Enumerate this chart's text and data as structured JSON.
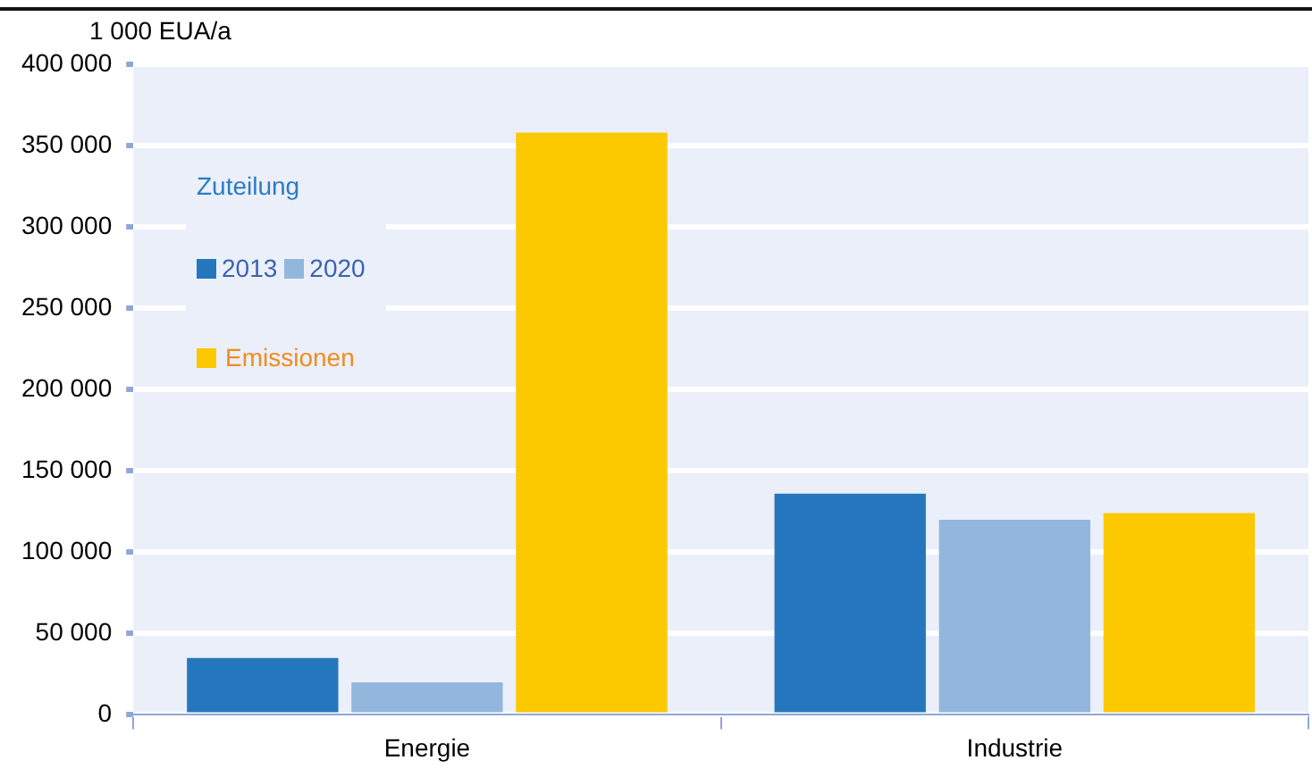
{
  "chart_data": {
    "type": "bar",
    "ylabel": "1 000 EUA/a",
    "legend_title": "Zuteilung",
    "categories": [
      "Energie",
      "Industrie"
    ],
    "series": [
      {
        "name": "2013",
        "color": "#2577bd",
        "values": [
          35000,
          136000
        ]
      },
      {
        "name": "2020",
        "color": "#93b7dc",
        "values": [
          20000,
          120000
        ]
      },
      {
        "name": "Emissionen",
        "color": "#fcc800",
        "values": [
          358000,
          124000
        ]
      }
    ],
    "ylim": [
      0,
      400000
    ],
    "yticks": [
      {
        "value": 0,
        "label": "0"
      },
      {
        "value": 50000,
        "label": "50 000"
      },
      {
        "value": 100000,
        "label": "100 000"
      },
      {
        "value": 150000,
        "label": "150 000"
      },
      {
        "value": 200000,
        "label": "200 000"
      },
      {
        "value": 250000,
        "label": "250 000"
      },
      {
        "value": 300000,
        "label": "300 000"
      },
      {
        "value": 350000,
        "label": "350 000"
      },
      {
        "value": 400000,
        "label": "400 000"
      }
    ],
    "grid": "y",
    "legend": "top left"
  }
}
